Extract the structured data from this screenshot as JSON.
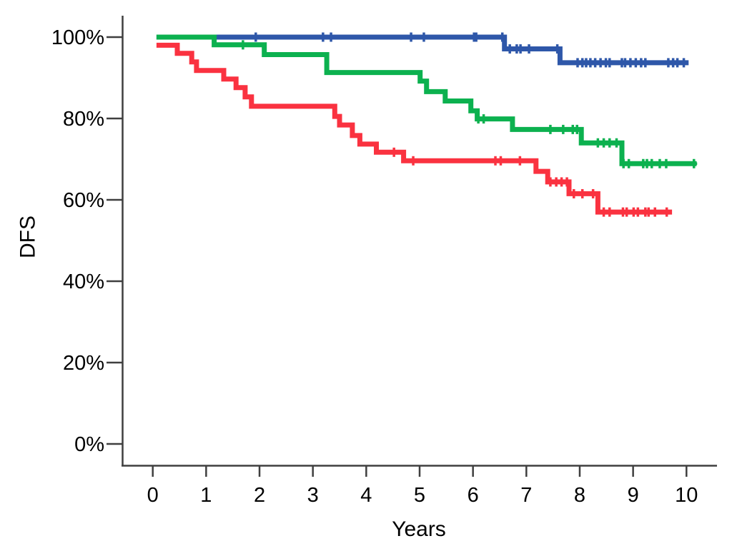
{
  "chart_data": {
    "type": "line",
    "subtype": "kaplan-meier-step-survival",
    "title": "",
    "xlabel": "Years",
    "ylabel": "DFS",
    "grid": "off",
    "legend": "none",
    "xlim_years": [
      -0.56,
      10.57
    ],
    "ylim_percent": [
      -5.3,
      105.6
    ],
    "x_ticks": [
      {
        "label": "0",
        "value": 0
      },
      {
        "label": "1",
        "value": 1
      },
      {
        "label": "2",
        "value": 2
      },
      {
        "label": "3",
        "value": 3
      },
      {
        "label": "4",
        "value": 4
      },
      {
        "label": "5",
        "value": 5
      },
      {
        "label": "6",
        "value": 6
      },
      {
        "label": "7",
        "value": 7
      },
      {
        "label": "8",
        "value": 8
      },
      {
        "label": "9",
        "value": 9
      },
      {
        "label": "10",
        "value": 10
      }
    ],
    "y_ticks": [
      {
        "label": "0%",
        "value": 0
      },
      {
        "label": "20%",
        "value": 20
      },
      {
        "label": "40%",
        "value": 40
      },
      {
        "label": "60%",
        "value": 60
      },
      {
        "label": "80%",
        "value": 80
      },
      {
        "label": "100%",
        "value": 100
      }
    ],
    "series": [
      {
        "name": "blue",
        "color": "#2E57A9",
        "steps": [
          [
            0.07,
            100
          ],
          [
            6.59,
            97.1
          ],
          [
            7.63,
            93.7
          ]
        ],
        "end": 10.04,
        "censor_marks": [
          [
            1.93,
            100
          ],
          [
            3.19,
            100
          ],
          [
            3.34,
            100
          ],
          [
            4.84,
            100
          ],
          [
            5.08,
            100
          ],
          [
            6.02,
            100
          ],
          [
            6.06,
            100
          ],
          [
            6.55,
            100
          ],
          [
            6.69,
            97.1
          ],
          [
            6.82,
            97.1
          ],
          [
            6.89,
            97.1
          ],
          [
            7.05,
            97.1
          ],
          [
            7.58,
            97.1
          ],
          [
            7.96,
            93.7
          ],
          [
            8.05,
            93.7
          ],
          [
            8.12,
            93.7
          ],
          [
            8.2,
            93.7
          ],
          [
            8.29,
            93.7
          ],
          [
            8.39,
            93.7
          ],
          [
            8.49,
            93.7
          ],
          [
            8.56,
            93.7
          ],
          [
            8.79,
            93.7
          ],
          [
            8.85,
            93.7
          ],
          [
            8.95,
            93.7
          ],
          [
            9.05,
            93.7
          ],
          [
            9.15,
            93.7
          ],
          [
            9.23,
            93.7
          ],
          [
            9.66,
            93.7
          ],
          [
            9.75,
            93.7
          ],
          [
            9.83,
            93.7
          ],
          [
            9.95,
            93.7
          ]
        ]
      },
      {
        "name": "green",
        "color": "#0CB14F",
        "steps": [
          [
            0.07,
            100
          ],
          [
            1.15,
            98.1
          ],
          [
            2.09,
            95.7
          ],
          [
            3.26,
            91.3
          ],
          [
            5.01,
            89.2
          ],
          [
            5.13,
            86.6
          ],
          [
            5.48,
            84.3
          ],
          [
            5.96,
            81.9
          ],
          [
            6.08,
            79.9
          ],
          [
            6.74,
            77.3
          ],
          [
            8.03,
            74.0
          ],
          [
            8.79,
            68.9
          ]
        ],
        "end": 10.19,
        "censor_marks": [
          [
            1.69,
            98.1
          ],
          [
            6.1,
            79.9
          ],
          [
            6.2,
            79.9
          ],
          [
            7.45,
            77.3
          ],
          [
            7.69,
            77.3
          ],
          [
            7.87,
            77.3
          ],
          [
            7.95,
            77.3
          ],
          [
            8.34,
            74.0
          ],
          [
            8.45,
            74.0
          ],
          [
            8.56,
            74.0
          ],
          [
            8.69,
            74.0
          ],
          [
            8.82,
            68.9
          ],
          [
            8.92,
            68.9
          ],
          [
            9.19,
            68.9
          ],
          [
            9.26,
            68.9
          ],
          [
            9.35,
            68.9
          ],
          [
            9.5,
            68.9
          ],
          [
            9.62,
            68.9
          ],
          [
            10.14,
            68.9
          ]
        ]
      },
      {
        "name": "red",
        "color": "#FA3240",
        "steps": [
          [
            0.07,
            98.0
          ],
          [
            0.46,
            96.0
          ],
          [
            0.73,
            93.9
          ],
          [
            0.82,
            91.8
          ],
          [
            1.33,
            89.7
          ],
          [
            1.56,
            87.6
          ],
          [
            1.73,
            85.3
          ],
          [
            1.85,
            83.0
          ],
          [
            3.41,
            80.5
          ],
          [
            3.5,
            78.4
          ],
          [
            3.74,
            75.8
          ],
          [
            3.88,
            73.7
          ],
          [
            4.19,
            71.7
          ],
          [
            4.7,
            69.6
          ],
          [
            7.18,
            67.0
          ],
          [
            7.4,
            64.4
          ],
          [
            7.8,
            61.5
          ],
          [
            8.34,
            57.0
          ]
        ],
        "end": 9.73,
        "censor_marks": [
          [
            4.52,
            71.7
          ],
          [
            4.88,
            69.6
          ],
          [
            6.42,
            69.6
          ],
          [
            6.52,
            69.6
          ],
          [
            6.88,
            69.6
          ],
          [
            7.45,
            64.4
          ],
          [
            7.56,
            64.4
          ],
          [
            7.66,
            64.4
          ],
          [
            7.76,
            64.4
          ],
          [
            7.89,
            61.5
          ],
          [
            8.05,
            61.5
          ],
          [
            8.25,
            61.5
          ],
          [
            8.45,
            57.0
          ],
          [
            8.56,
            57.0
          ],
          [
            8.81,
            57.0
          ],
          [
            8.88,
            57.0
          ],
          [
            9.01,
            57.0
          ],
          [
            9.09,
            57.0
          ],
          [
            9.23,
            57.0
          ],
          [
            9.29,
            57.0
          ],
          [
            9.41,
            57.0
          ],
          [
            9.63,
            57.0
          ]
        ]
      }
    ]
  },
  "colors": {
    "axis": "#3F3F3F",
    "text": "#000000",
    "background": "#FFFFFF"
  }
}
